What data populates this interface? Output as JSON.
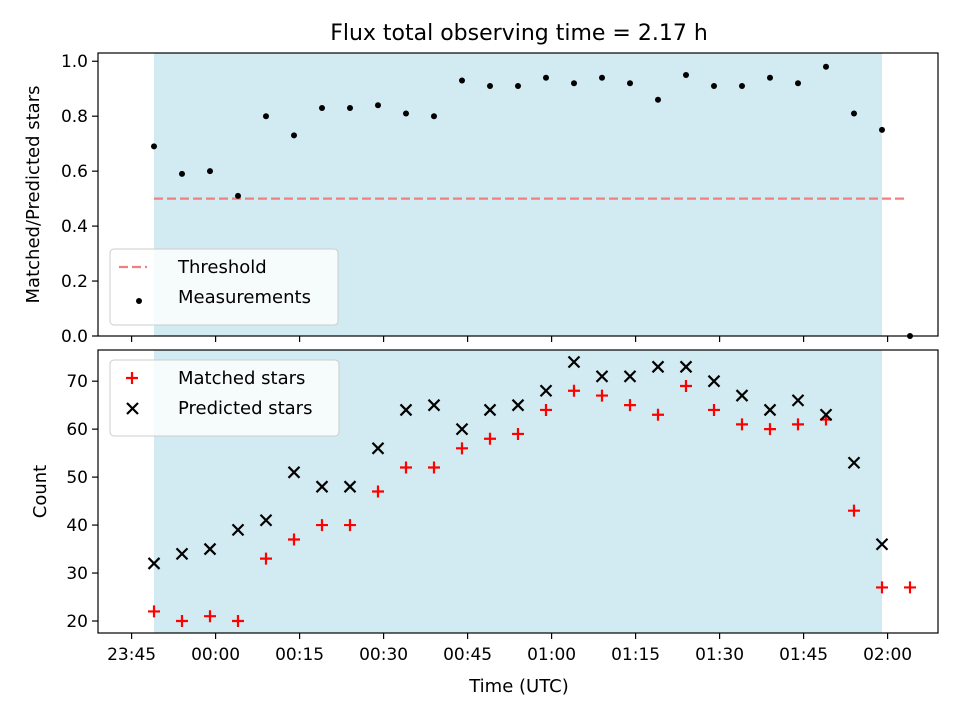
{
  "figure": {
    "title": "Flux total observing time = 2.17 h",
    "xlabel": "Time (UTC)",
    "x_tick_labels": [
      "23:45",
      "00:00",
      "00:15",
      "00:30",
      "00:45",
      "01:00",
      "01:15",
      "01:30",
      "01:45",
      "02:00"
    ],
    "shaded_span": {
      "start": "23:49",
      "end": "01:59",
      "color": "#add8e6"
    }
  },
  "chart_data": [
    {
      "type": "scatter",
      "ylabel": "Matched/Predicted stars",
      "ylim": [
        0,
        1.03
      ],
      "y_ticks": [
        0.0,
        0.2,
        0.4,
        0.6,
        0.8,
        1.0
      ],
      "legend_position": "lower-left",
      "threshold": {
        "name": "Threshold",
        "value": 0.5,
        "x_start": "23:49",
        "x_end": "02:03",
        "color": "#f08080",
        "style": "dashed"
      },
      "series": [
        {
          "name": "Measurements",
          "color": "#000000",
          "marker": "dot",
          "points": [
            [
              "23:49",
              0.69
            ],
            [
              "23:54",
              0.59
            ],
            [
              "23:59",
              0.6
            ],
            [
              "00:04",
              0.51
            ],
            [
              "00:09",
              0.8
            ],
            [
              "00:14",
              0.73
            ],
            [
              "00:19",
              0.83
            ],
            [
              "00:24",
              0.83
            ],
            [
              "00:29",
              0.84
            ],
            [
              "00:34",
              0.81
            ],
            [
              "00:39",
              0.8
            ],
            [
              "00:44",
              0.93
            ],
            [
              "00:49",
              0.91
            ],
            [
              "00:54",
              0.91
            ],
            [
              "00:59",
              0.94
            ],
            [
              "01:04",
              0.92
            ],
            [
              "01:09",
              0.94
            ],
            [
              "01:14",
              0.92
            ],
            [
              "01:19",
              0.86
            ],
            [
              "01:24",
              0.95
            ],
            [
              "01:29",
              0.91
            ],
            [
              "01:34",
              0.91
            ],
            [
              "01:39",
              0.94
            ],
            [
              "01:44",
              0.92
            ],
            [
              "01:49",
              0.98
            ],
            [
              "01:54",
              0.81
            ],
            [
              "01:59",
              0.75
            ],
            [
              "02:04",
              0.0
            ]
          ]
        }
      ]
    },
    {
      "type": "scatter",
      "ylabel": "Count",
      "ylim": [
        17.5,
        76.5
      ],
      "y_ticks": [
        20,
        30,
        40,
        50,
        60,
        70
      ],
      "legend_position": "upper-left",
      "series": [
        {
          "name": "Matched stars",
          "color": "#ff0000",
          "marker": "plus",
          "points": [
            [
              "23:49",
              22
            ],
            [
              "23:54",
              20
            ],
            [
              "23:59",
              21
            ],
            [
              "00:04",
              20
            ],
            [
              "00:09",
              33
            ],
            [
              "00:14",
              37
            ],
            [
              "00:19",
              40
            ],
            [
              "00:24",
              40
            ],
            [
              "00:29",
              47
            ],
            [
              "00:34",
              52
            ],
            [
              "00:39",
              52
            ],
            [
              "00:44",
              56
            ],
            [
              "00:49",
              58
            ],
            [
              "00:54",
              59
            ],
            [
              "00:59",
              64
            ],
            [
              "01:04",
              68
            ],
            [
              "01:09",
              67
            ],
            [
              "01:14",
              65
            ],
            [
              "01:19",
              63
            ],
            [
              "01:24",
              69
            ],
            [
              "01:29",
              64
            ],
            [
              "01:34",
              61
            ],
            [
              "01:39",
              60
            ],
            [
              "01:44",
              61
            ],
            [
              "01:49",
              62
            ],
            [
              "01:54",
              43
            ],
            [
              "01:59",
              27
            ],
            [
              "02:04",
              27
            ]
          ]
        },
        {
          "name": "Predicted stars",
          "color": "#000000",
          "marker": "x",
          "points": [
            [
              "23:49",
              32
            ],
            [
              "23:54",
              34
            ],
            [
              "23:59",
              35
            ],
            [
              "00:04",
              39
            ],
            [
              "00:09",
              41
            ],
            [
              "00:14",
              51
            ],
            [
              "00:19",
              48
            ],
            [
              "00:24",
              48
            ],
            [
              "00:29",
              56
            ],
            [
              "00:34",
              64
            ],
            [
              "00:39",
              65
            ],
            [
              "00:44",
              60
            ],
            [
              "00:49",
              64
            ],
            [
              "00:54",
              65
            ],
            [
              "00:59",
              68
            ],
            [
              "01:04",
              74
            ],
            [
              "01:09",
              71
            ],
            [
              "01:14",
              71
            ],
            [
              "01:19",
              73
            ],
            [
              "01:24",
              73
            ],
            [
              "01:29",
              70
            ],
            [
              "01:34",
              67
            ],
            [
              "01:39",
              64
            ],
            [
              "01:44",
              66
            ],
            [
              "01:49",
              63
            ],
            [
              "01:54",
              53
            ],
            [
              "01:59",
              36
            ]
          ]
        }
      ]
    }
  ]
}
